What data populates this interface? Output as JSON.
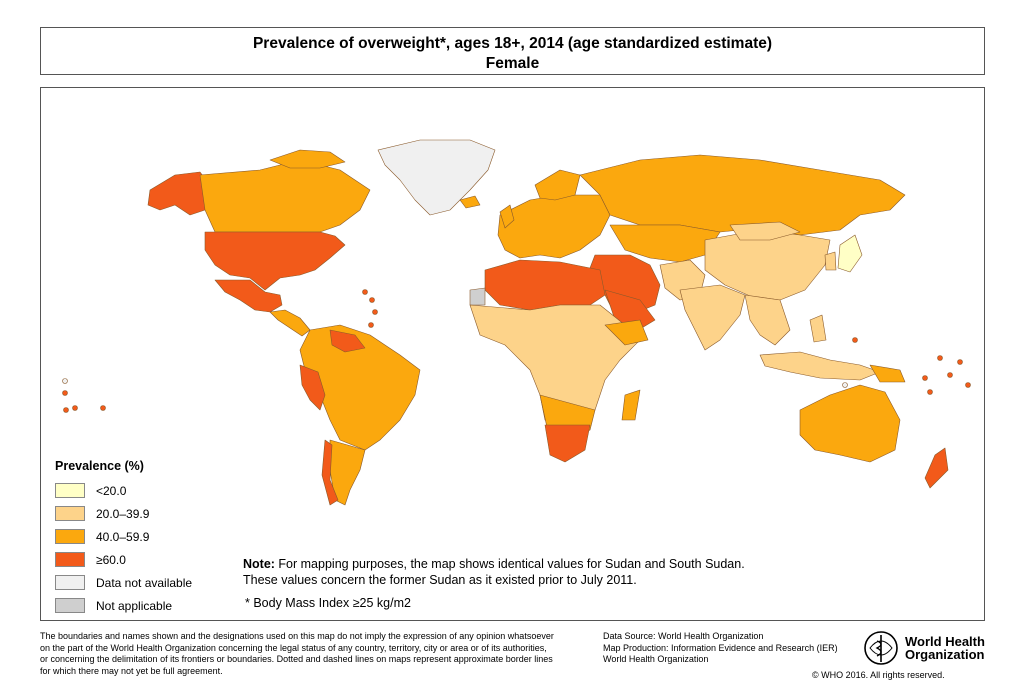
{
  "title": {
    "line1": "Prevalence of  overweight*, ages 18+, 2014 (age standardized estimate)",
    "line2": "Female"
  },
  "legend": {
    "title": "Prevalence (%)",
    "items": [
      {
        "label": "<20.0",
        "color": "#FFFFC6"
      },
      {
        "label": "20.0–39.9",
        "color": "#FDD38A"
      },
      {
        "label": "40.0–59.9",
        "color": "#FBA80E"
      },
      {
        "label": "≥60.0",
        "color": "#F25A1A"
      },
      {
        "label": "Data not available",
        "color": "#F0F0F0"
      },
      {
        "label": "Not applicable",
        "color": "#CFCFCF"
      }
    ]
  },
  "note": {
    "label": "Note:",
    "line1": " For mapping purposes, the map shows identical values for Sudan and South Sudan.",
    "line2": "These values concern the former Sudan as it existed prior to July 2011."
  },
  "footnote": "* Body Mass Index ≥25 kg/m2",
  "disclaimer": {
    "line1": "The boundaries and names shown and the designations used on this map do not imply the expression of any opinion whatsoever",
    "line2": "on the part of the World Health Organization concerning the legal status of any country, territory, city or area or of its authorities,",
    "line3": "or concerning the delimitation of its frontiers or boundaries. Dotted and dashed lines on maps represent approximate border lines",
    "line4": "for which there may not yet be full agreement."
  },
  "source": {
    "line1": "Data Source: World Health Organization",
    "line2": "Map Production: Information Evidence and Research (IER)",
    "line3": "World Health Organization"
  },
  "who": {
    "name_line1": "World Health",
    "name_line2": "Organization",
    "copyright": "© WHO 2016. All rights reserved."
  },
  "colors": {
    "lt20": "#FFFFC6",
    "c20_39": "#FDD38A",
    "c40_59": "#FBA80E",
    "ge60": "#F25A1A",
    "na_data": "#F0F0F0",
    "not_applicable": "#CFCFCF",
    "border": "#8A5A2B"
  }
}
